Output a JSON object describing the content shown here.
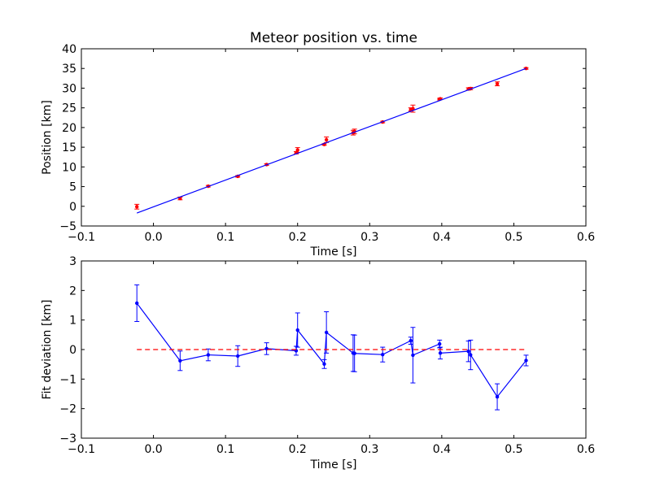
{
  "chart_data": [
    {
      "type": "scatter",
      "title": "Meteor position vs. time",
      "xlabel": "Time [s]",
      "ylabel": "Position [km]",
      "xlim": [
        -0.1,
        0.6
      ],
      "ylim": [
        -5,
        40
      ],
      "xticks": [
        "−0.1",
        "0.0",
        "0.1",
        "0.2",
        "0.3",
        "0.4",
        "0.5",
        "0.6"
      ],
      "xtick_values": [
        -0.1,
        0.0,
        0.1,
        0.2,
        0.3,
        0.4,
        0.5,
        0.6
      ],
      "yticks": [
        "−5",
        "0",
        "5",
        "10",
        "15",
        "20",
        "25",
        "30",
        "35",
        "40"
      ],
      "ytick_values": [
        -5,
        0,
        5,
        10,
        15,
        20,
        25,
        30,
        35,
        40
      ],
      "grid": false,
      "series": [
        {
          "kind": "points",
          "color": "#ff0000",
          "x": [
            -0.023,
            0.037,
            0.076,
            0.117,
            0.157,
            0.198,
            0.2,
            0.237,
            0.24,
            0.277,
            0.279,
            0.318,
            0.357,
            0.36,
            0.397,
            0.398,
            0.437,
            0.44,
            0.477,
            0.517
          ],
          "y": [
            -0.1,
            2.0,
            5.1,
            7.6,
            10.6,
            13.6,
            14.3,
            15.7,
            16.9,
            18.7,
            19.0,
            21.4,
            24.6,
            24.8,
            27.2,
            27.3,
            29.8,
            29.9,
            31.1,
            35.0
          ],
          "yerr": [
            0.6,
            0.35,
            0.2,
            0.2,
            0.2,
            0.3,
            0.6,
            0.2,
            0.7,
            0.6,
            0.6,
            0.2,
            0.4,
            0.9,
            0.2,
            0.2,
            0.3,
            0.3,
            0.5,
            0.2
          ]
        },
        {
          "kind": "line",
          "color": "#0000ff",
          "x": [
            -0.023,
            0.517
          ],
          "y": [
            -1.7,
            35.0
          ]
        }
      ]
    },
    {
      "type": "line",
      "title": "",
      "xlabel": "Time [s]",
      "ylabel": "Fit deviation [km]",
      "xlim": [
        -0.1,
        0.6
      ],
      "ylim": [
        -3,
        3
      ],
      "xticks": [
        "−0.1",
        "0.0",
        "0.1",
        "0.2",
        "0.3",
        "0.4",
        "0.5",
        "0.6"
      ],
      "xtick_values": [
        -0.1,
        0.0,
        0.1,
        0.2,
        0.3,
        0.4,
        0.5,
        0.6
      ],
      "yticks": [
        "−3",
        "−2",
        "−1",
        "0",
        "1",
        "2",
        "3"
      ],
      "ytick_values": [
        -3,
        -2,
        -1,
        0,
        1,
        2,
        3
      ],
      "grid": false,
      "series": [
        {
          "kind": "errorline",
          "color": "#0000ff",
          "x": [
            -0.023,
            0.037,
            0.076,
            0.117,
            0.157,
            0.198,
            0.2,
            0.237,
            0.24,
            0.277,
            0.279,
            0.318,
            0.357,
            0.36,
            0.397,
            0.398,
            0.437,
            0.44,
            0.477,
            0.517
          ],
          "y": [
            1.57,
            -0.38,
            -0.18,
            -0.22,
            0.03,
            -0.04,
            0.66,
            -0.49,
            0.58,
            -0.12,
            -0.13,
            -0.17,
            0.3,
            -0.19,
            0.19,
            -0.12,
            -0.06,
            -0.18,
            -1.6,
            -0.37
          ],
          "yerr": [
            0.62,
            0.33,
            0.2,
            0.35,
            0.2,
            0.15,
            0.58,
            0.15,
            0.7,
            0.62,
            0.62,
            0.25,
            0.12,
            0.94,
            0.13,
            0.2,
            0.35,
            0.5,
            0.44,
            0.18
          ]
        },
        {
          "kind": "dashed",
          "color": "#ff0000",
          "x": [
            -0.023,
            0.517
          ],
          "y": [
            0,
            0
          ]
        }
      ]
    }
  ]
}
